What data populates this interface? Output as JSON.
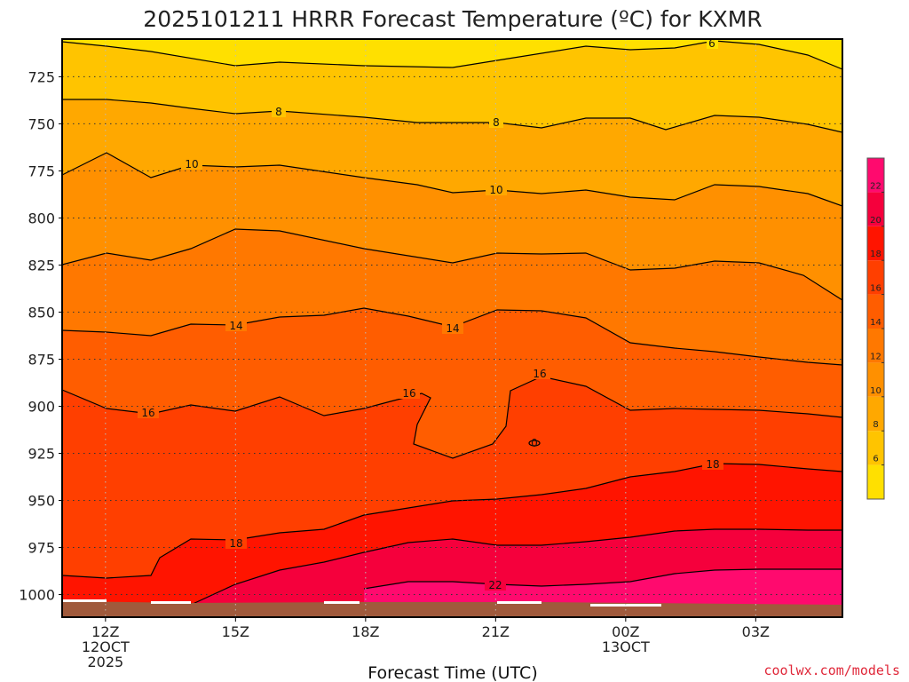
{
  "chart_data": {
    "type": "heatmap",
    "title": "2025101211 HRRR Forecast Temperature (ºC) for KXMR",
    "xlabel": "Forecast Time (UTC)",
    "ylabel": "",
    "x": [
      0,
      3,
      6,
      9,
      12,
      15
    ],
    "x_tick_labels": [
      [
        "12Z",
        "12OCT",
        "2025"
      ],
      [
        "15Z"
      ],
      [
        "18Z"
      ],
      [
        "21Z"
      ],
      [
        "00Z",
        "13OCT"
      ],
      [
        "03Z"
      ]
    ],
    "xlim": [
      -1,
      17
    ],
    "y_ticks": [
      725,
      750,
      775,
      800,
      825,
      850,
      875,
      900,
      925,
      950,
      975,
      1000
    ],
    "ylim": [
      705,
      1012
    ],
    "y_axis_reversed": true,
    "grid": true,
    "contour_interval": 2,
    "contour_levels": [
      6,
      8,
      10,
      12,
      14,
      16,
      18,
      20,
      22
    ],
    "contour_labels": [
      "6",
      "8",
      "8",
      "10",
      "10",
      "14",
      "14",
      "16",
      "16",
      "16",
      "18",
      "18",
      "22",
      "0"
    ],
    "colorbar": {
      "ticks": [
        "6",
        "8",
        "10",
        "12",
        "14",
        "16",
        "18",
        "20",
        "22"
      ],
      "colors": [
        "#ffe000",
        "#ffc400",
        "#ffa800",
        "#ff9000",
        "#ff7800",
        "#ff5d00",
        "#ff3f00",
        "#ff1400",
        "#f5003c",
        "#ff0a6e"
      ],
      "position": "right"
    },
    "ground_color": "#a05a3c",
    "credit": "coolwx.com/models"
  }
}
